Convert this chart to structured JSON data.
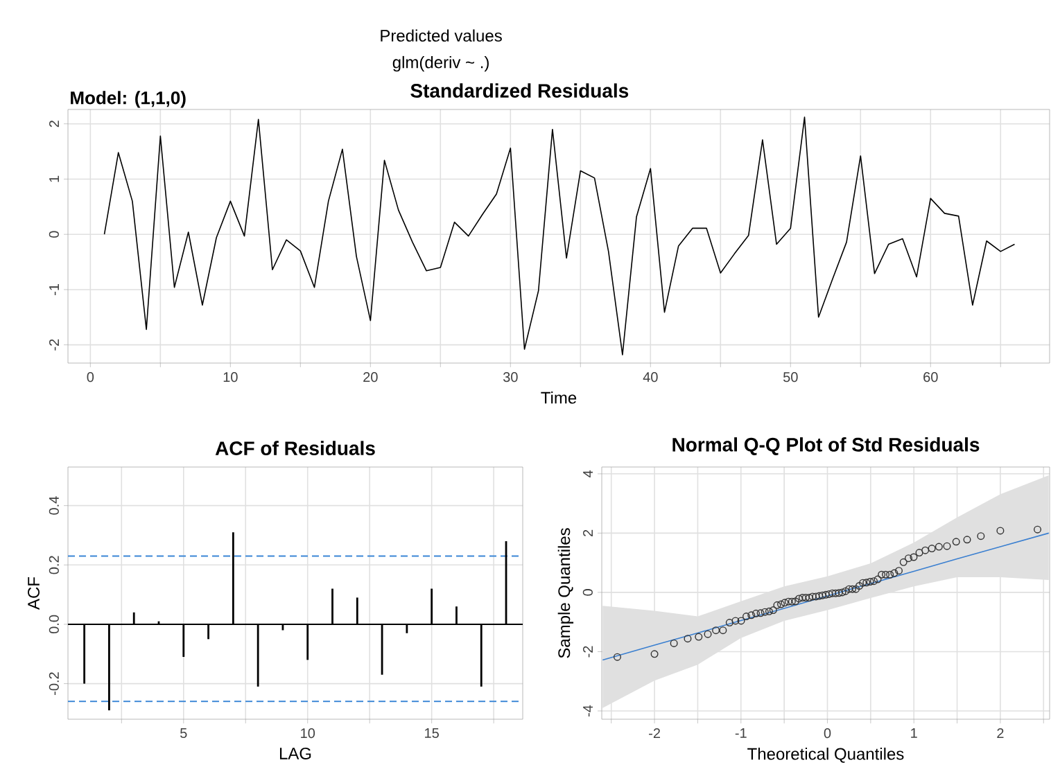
{
  "chart_data": [
    {
      "type": "line",
      "title": "Standardized Residuals",
      "subtitle": "Model: (1,1,0)",
      "annotations": [
        "Predicted values",
        "glm(deriv ~ .)"
      ],
      "xlabel": "Time",
      "x": [
        1,
        2,
        3,
        4,
        5,
        6,
        7,
        8,
        9,
        10,
        11,
        12,
        13,
        14,
        15,
        16,
        17,
        18,
        19,
        20,
        21,
        22,
        23,
        24,
        25,
        26,
        27,
        28,
        29,
        30,
        31,
        32,
        33,
        34,
        35,
        36,
        37,
        38,
        39,
        40,
        41,
        42,
        43,
        44,
        45,
        46,
        47,
        48,
        49,
        50,
        51,
        52,
        53,
        54,
        55,
        56,
        57,
        58,
        59,
        60,
        61,
        62,
        63,
        64,
        65,
        66
      ],
      "series": [
        {
          "color": "#000000",
          "values": [
            0.0,
            1.48,
            0.6,
            -1.72,
            1.78,
            -0.96,
            0.04,
            -1.28,
            -0.06,
            0.6,
            -0.03,
            2.08,
            -0.64,
            -0.1,
            -0.3,
            -0.96,
            0.6,
            1.54,
            -0.4,
            -1.56,
            1.34,
            0.44,
            -0.14,
            -0.66,
            -0.6,
            0.22,
            -0.03,
            0.36,
            0.73,
            1.56,
            -2.08,
            -1.02,
            1.9,
            -0.43,
            1.15,
            1.02,
            -0.31,
            -2.18,
            0.32,
            1.19,
            -1.41,
            -0.21,
            0.11,
            0.11,
            -0.7,
            -0.35,
            -0.02,
            1.71,
            -0.18,
            0.11,
            2.12,
            -1.5,
            -0.81,
            -0.14,
            1.42,
            -0.71,
            -0.18,
            -0.08,
            -0.77,
            0.65,
            0.38,
            0.33,
            -1.28,
            -0.12,
            -0.31,
            -0.18
          ]
        }
      ],
      "xlim": [
        -1.6,
        68.5
      ],
      "ylim": [
        -2.33,
        2.26
      ],
      "xticks": [
        0,
        {
          "value": 5,
          "label": null
        },
        10,
        {
          "value": 15,
          "label": null
        },
        20,
        {
          "value": 25,
          "label": null
        },
        30,
        {
          "value": 35,
          "label": null
        },
        40,
        {
          "value": 45,
          "label": null
        },
        50,
        {
          "value": 55,
          "label": null
        },
        60,
        {
          "value": 65,
          "label": null
        }
      ],
      "yticks": [
        -2,
        -1,
        0,
        1,
        2
      ],
      "grid": true
    },
    {
      "type": "bar",
      "title": "ACF of Residuals",
      "xlabel": "LAG",
      "ylabel": "ACF",
      "x": [
        1,
        2,
        3,
        4,
        5,
        6,
        7,
        8,
        9,
        10,
        11,
        12,
        13,
        14,
        15,
        16,
        17,
        18
      ],
      "values": [
        -0.2,
        -0.29,
        0.04,
        0.01,
        -0.11,
        -0.05,
        0.31,
        -0.21,
        -0.02,
        -0.12,
        0.12,
        0.09,
        -0.17,
        -0.03,
        0.12,
        0.06,
        -0.21,
        0.28
      ],
      "color": "#000000",
      "xlim": [
        0.34,
        18.67
      ],
      "ylim": [
        -0.32,
        0.53
      ],
      "xticks": [
        {
          "value": 2.5,
          "label": null
        },
        5,
        {
          "value": 7.5,
          "label": null
        },
        10,
        {
          "value": 12.5,
          "label": null
        },
        15,
        {
          "value": 17.5,
          "label": null
        }
      ],
      "yticks": [
        -0.2,
        {
          "value": 0,
          "label": "0.0"
        },
        0.2,
        0.4
      ],
      "ref_lines": [
        {
          "axis": "y",
          "value": 0,
          "color": "#000000",
          "line_style": "solid"
        },
        {
          "axis": "y",
          "value": 0.23,
          "color": "#3a86d6",
          "line_style": "dashed"
        },
        {
          "axis": "y",
          "value": -0.26,
          "color": "#3a86d6",
          "line_style": "dashed"
        }
      ],
      "grid": true
    },
    {
      "type": "scatter",
      "title": "Normal Q-Q Plot of Std Residuals",
      "xlabel": "Theoretical Quantiles",
      "ylabel": "Sample Quantiles",
      "series": [
        {
          "type": "scatter",
          "marker": "circle",
          "color": "#333333",
          "x": [
            -2.43,
            -2.0,
            -1.775,
            -1.616,
            -1.489,
            -1.383,
            -1.29,
            -1.208,
            -1.132,
            -1.063,
            -0.998,
            -0.938,
            -0.88,
            -0.826,
            -0.773,
            -0.723,
            -0.674,
            -0.627,
            -0.582,
            -0.537,
            -0.494,
            -0.451,
            -0.41,
            -0.369,
            -0.329,
            -0.289,
            -0.25,
            -0.21,
            -0.172,
            -0.133,
            -0.095,
            -0.057,
            -0.019,
            0.019,
            0.057,
            0.095,
            0.133,
            0.172,
            0.21,
            0.25,
            0.289,
            0.329,
            0.369,
            0.41,
            0.451,
            0.494,
            0.537,
            0.582,
            0.627,
            0.674,
            0.723,
            0.773,
            0.826,
            0.88,
            0.938,
            0.998,
            1.063,
            1.132,
            1.208,
            1.29,
            1.383,
            1.489,
            1.616,
            1.775,
            2.0,
            2.43
          ],
          "values": [
            -2.18,
            -2.08,
            -1.72,
            -1.56,
            -1.5,
            -1.41,
            -1.28,
            -1.28,
            -1.02,
            -0.96,
            -0.96,
            -0.81,
            -0.77,
            -0.71,
            -0.7,
            -0.66,
            -0.64,
            -0.6,
            -0.43,
            -0.4,
            -0.35,
            -0.31,
            -0.31,
            -0.3,
            -0.21,
            -0.18,
            -0.18,
            -0.18,
            -0.14,
            -0.14,
            -0.12,
            -0.1,
            -0.08,
            -0.06,
            -0.03,
            -0.03,
            -0.02,
            0.0,
            0.04,
            0.11,
            0.11,
            0.11,
            0.22,
            0.32,
            0.33,
            0.36,
            0.38,
            0.44,
            0.6,
            0.6,
            0.6,
            0.65,
            0.73,
            1.02,
            1.15,
            1.19,
            1.34,
            1.42,
            1.48,
            1.54,
            1.56,
            1.71,
            1.78,
            1.9,
            2.08,
            2.12
          ]
        },
        {
          "type": "line",
          "marker": "none",
          "color": "#3a7fd0",
          "x": [
            -2.6,
            -2,
            -1.5,
            -1,
            -0.5,
            0,
            0.5,
            1,
            1.5,
            2,
            2.56
          ],
          "values": [
            -2.28,
            -1.78,
            -1.37,
            -0.95,
            -0.54,
            -0.12,
            0.3,
            0.71,
            1.13,
            1.54,
            2.0
          ],
          "lower": [
            -3.9,
            -2.98,
            -2.44,
            -1.54,
            -0.96,
            -0.6,
            -0.19,
            0.2,
            0.51,
            0.51,
            0.42
          ],
          "upper": [
            -0.45,
            -0.62,
            -0.81,
            -0.3,
            0.2,
            0.54,
            0.98,
            1.68,
            2.53,
            3.31,
            3.95
          ]
        }
      ],
      "xlim": [
        -2.61,
        2.57
      ],
      "ylim": [
        -4.28,
        4.23
      ],
      "xticks": [
        {
          "value": -2.5,
          "label": null
        },
        -2,
        {
          "value": -1.5,
          "label": null
        },
        -1,
        {
          "value": -0.5,
          "label": null
        },
        0,
        {
          "value": 0.5,
          "label": null
        },
        1,
        {
          "value": 1.5,
          "label": null
        },
        2,
        {
          "value": 2.5,
          "label": null
        }
      ],
      "yticks": [
        -4,
        -2,
        0,
        2,
        4
      ],
      "grid": true
    }
  ]
}
